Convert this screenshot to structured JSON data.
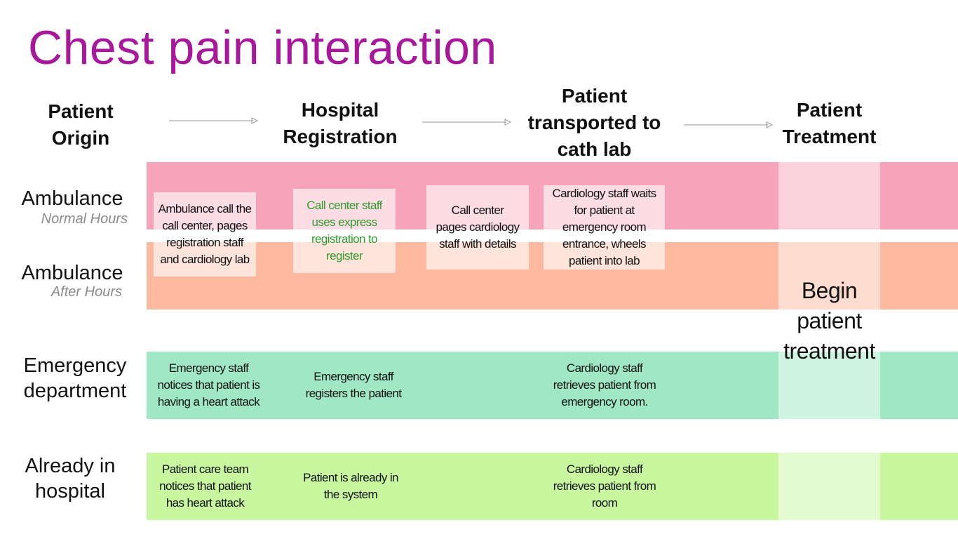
{
  "title": "Chest pain interaction",
  "columns": {
    "origin": "Patient Origin",
    "registration": "Hospital Registration",
    "transport": "Patient transported to cath lab",
    "treatment": "Patient Treatment"
  },
  "rows": {
    "ambulance_normal": {
      "label": "Ambulance",
      "sublabel": "Normal Hours",
      "color": "#f7a4bb"
    },
    "ambulance_after": {
      "label": "Ambulance",
      "sublabel": "After Hours",
      "color": "#fdb8a0"
    },
    "emergency": {
      "label": "Emergency department",
      "color": "#a0e8c4"
    },
    "in_hospital": {
      "label": "Already in hospital",
      "color": "#c8f7a0"
    }
  },
  "cells": {
    "ambulance_origin": "Ambulance call the call center, pages registration staff and cardiology lab",
    "ambulance_registration": "Call center staff uses express registration to register",
    "ambulance_pages": "Call center pages cardiology staff with details",
    "ambulance_transport": "Cardiology staff waits for patient at emergency room entrance, wheels patient into lab",
    "emergency_origin": "Emergency staff notices that patient is having a heart attack",
    "emergency_registration": "Emergency staff registers the patient",
    "emergency_transport": "Cardiology staff retrieves patient from emergency room.",
    "hospital_origin": "Patient care team notices that patient has heart attack",
    "hospital_registration": "Patient is already in the system",
    "hospital_transport": "Cardiology staff retrieves patient from room"
  },
  "treatment_text": "Begin patient treatment",
  "colors": {
    "title": "#a8189b",
    "registration_highlight": "#2f9c2a"
  }
}
